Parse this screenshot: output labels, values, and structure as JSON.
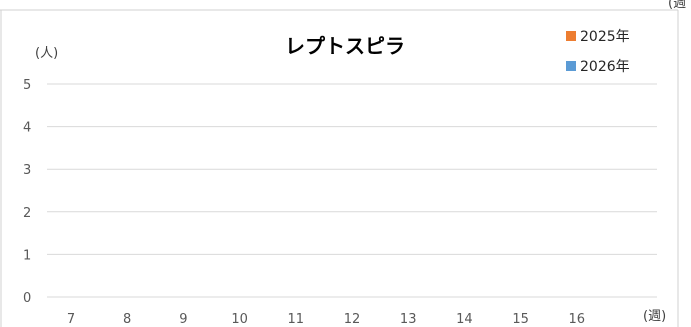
{
  "top_right_fragment": "(週",
  "chart_data": {
    "type": "bar",
    "title": "レプトスピラ",
    "y_unit": "(人)",
    "x_unit": "(週)",
    "categories": [
      "7",
      "8",
      "9",
      "10",
      "11",
      "12",
      "13",
      "14",
      "15",
      "16"
    ],
    "ylim": [
      0,
      5
    ],
    "y_ticks": [
      "0",
      "1",
      "2",
      "3",
      "4",
      "5"
    ],
    "grid": true,
    "legend_position": "top-right",
    "series": [
      {
        "name": "2025年",
        "color": "#ed7d31",
        "values": [
          0,
          0,
          0,
          0,
          0,
          0,
          0,
          0,
          0,
          0
        ]
      },
      {
        "name": "2026年",
        "color": "#5b9bd5",
        "values": [
          0,
          0,
          0,
          0,
          0,
          0,
          0,
          0,
          0,
          0
        ]
      }
    ]
  }
}
